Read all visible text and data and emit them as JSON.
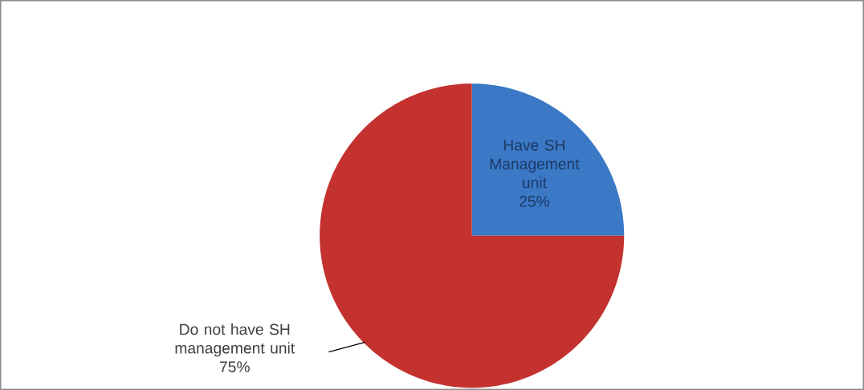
{
  "chart_data": {
    "type": "pie",
    "categories": [
      "Have SH Management unit",
      "Do not have SH management unit"
    ],
    "values": [
      25,
      75
    ],
    "value_labels": [
      "25%",
      "75%"
    ],
    "colors": [
      "#3b78c6",
      "#c3322f"
    ]
  }
}
